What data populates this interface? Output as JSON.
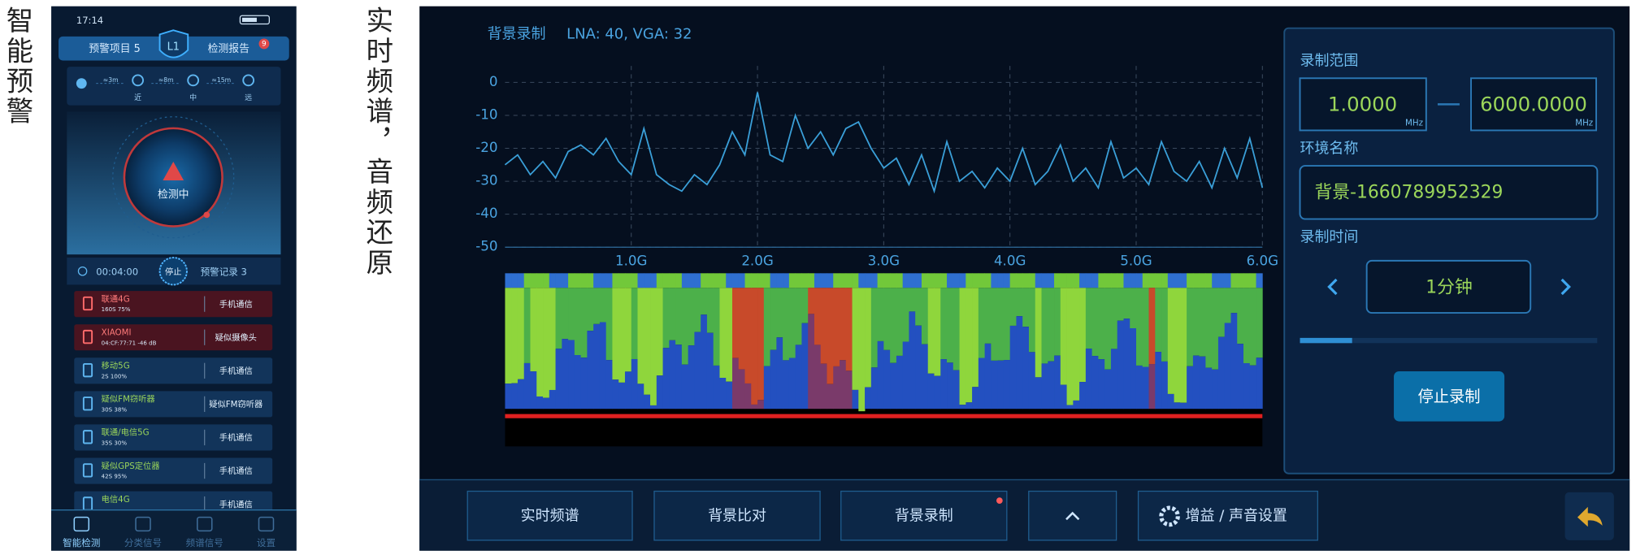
{
  "left_label": "智能预警",
  "phone": {
    "status_time": "17:14",
    "warning_items": "预警项目 5",
    "level": "L1",
    "report": "检测报告",
    "report_badge": "9",
    "distances": [
      {
        "value": "≈3m",
        "label": "近"
      },
      {
        "value": "≈8m",
        "label": "中"
      },
      {
        "value": "≈15m",
        "label": "远"
      }
    ],
    "radar_status": "检测中",
    "timer": "00:04:00",
    "stop": "停止",
    "records": "预警记录 3",
    "signals": [
      {
        "name": "联通4G",
        "detail": "160S   75%",
        "type": "手机通信"
      },
      {
        "name": "XIAOMI",
        "detail": "04:CF:77:71  -46 dB",
        "type": "疑似摄像头"
      },
      {
        "name": "移动5G",
        "detail": "2S    100%",
        "type": "手机通信"
      },
      {
        "name": "疑似FM窃听器",
        "detail": "30S   38%",
        "type": "疑似FM窃听器"
      },
      {
        "name": "联通/电信5G",
        "detail": "35S   30%",
        "type": "手机通信"
      },
      {
        "name": "疑似GPS定位器",
        "detail": "42S   95%",
        "type": "手机通信"
      },
      {
        "name": "电信4G",
        "type": "手机通信"
      }
    ],
    "nav": [
      "智能检测",
      "分类信号",
      "频谱信号",
      "设置"
    ]
  },
  "middle_label": "实时频谱，音频还原",
  "chart_data": {
    "type": "line",
    "title": "背景录制",
    "subtitle": "LNA: 40, VGA: 32",
    "x": [
      0,
      0.1,
      0.2,
      0.3,
      0.4,
      0.5,
      0.6,
      0.7,
      0.8,
      0.9,
      1.0,
      1.1,
      1.2,
      1.3,
      1.4,
      1.5,
      1.6,
      1.7,
      1.8,
      1.9,
      2.0,
      2.1,
      2.2,
      2.3,
      2.4,
      2.5,
      2.6,
      2.7,
      2.8,
      2.9,
      3.0,
      3.1,
      3.2,
      3.3,
      3.4,
      3.5,
      3.6,
      3.7,
      3.8,
      3.9,
      4.0,
      4.1,
      4.2,
      4.3,
      4.4,
      4.5,
      4.6,
      4.7,
      4.8,
      4.9,
      5.0,
      5.1,
      5.2,
      5.3,
      5.4,
      5.5,
      5.6,
      5.7,
      5.8,
      5.9,
      6.0
    ],
    "values": [
      -25,
      -22,
      -28,
      -24,
      -29,
      -21,
      -19,
      -22,
      -17,
      -24,
      -28,
      -14,
      -28,
      -31,
      -33,
      -28,
      -31,
      -25,
      -15,
      -22,
      -3,
      -22,
      -24,
      -10,
      -20,
      -15,
      -22,
      -14,
      -12,
      -20,
      -26,
      -23,
      -31,
      -22,
      -33,
      -18,
      -30,
      -27,
      -32,
      -26,
      -30,
      -20,
      -31,
      -27,
      -19,
      -30,
      -26,
      -32,
      -18,
      -29,
      -26,
      -31,
      -18,
      -27,
      -30,
      -24,
      -32,
      -20,
      -29,
      -17,
      -32
    ],
    "color": "#3a9fd8",
    "xlim": [
      0,
      6
    ],
    "xticks": [
      {
        "value": 1,
        "label": "1.0G"
      },
      {
        "value": 2,
        "label": "2.0G"
      },
      {
        "value": 3,
        "label": "3.0G"
      },
      {
        "value": 4,
        "label": "4.0G"
      },
      {
        "value": 5,
        "label": "5.0G"
      },
      {
        "value": 6,
        "label": "6.0G"
      }
    ],
    "ylim": [
      -50,
      5
    ],
    "yticks": [
      0,
      -10,
      -20,
      -30,
      -40,
      -50
    ],
    "grid": true
  },
  "settings": {
    "range_label": "录制范围",
    "range_start": "1.0000",
    "range_end": "6000.0000",
    "unit": "MHz",
    "env_label": "环境名称",
    "env_name": "背景-1660789952329",
    "time_label": "录制时间",
    "time_value": "1分钟",
    "stop_button": "停止录制"
  },
  "toolbar": [
    "实时频谱",
    "背景比对",
    "背景录制",
    "增益 / 声音设置"
  ]
}
